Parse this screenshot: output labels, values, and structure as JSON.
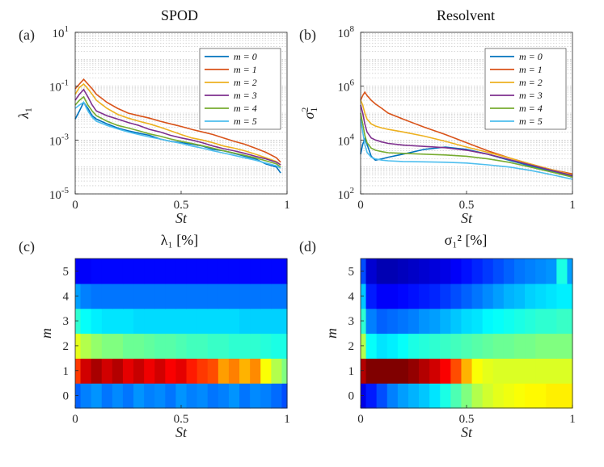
{
  "figure": {
    "panels": [
      {
        "letter": "(a)",
        "title": "SPOD"
      },
      {
        "letter": "(b)",
        "title": "Resolvent"
      },
      {
        "letter": "(c)",
        "title": "λ₁ [%]"
      },
      {
        "letter": "(d)",
        "title": "σ₁² [%]"
      }
    ]
  },
  "chart_data": [
    {
      "id": "a",
      "type": "line",
      "title": "SPOD",
      "panel_label": "(a)",
      "xlabel": "St",
      "ylabel": "λ1",
      "xlim": [
        0,
        1
      ],
      "ylim": [
        1e-05,
        10
      ],
      "yscale": "log",
      "xticks": [
        0,
        0.5,
        1
      ],
      "xtick_labels": [
        "0",
        "0.5",
        "1"
      ],
      "yticks": [
        1e-05,
        0.001,
        0.1,
        10
      ],
      "ytick_labels": [
        "10",
        "10",
        "10",
        "10"
      ],
      "ytick_exponents": [
        "-5",
        "-3",
        "-1",
        "1"
      ],
      "legend": [
        "m = 0",
        "m = 1",
        "m = 2",
        "m = 3",
        "m = 4",
        "m = 5"
      ],
      "legend_position": "top-right",
      "grid": "y-log-minor",
      "x": [
        0.0,
        0.02,
        0.04,
        0.06,
        0.08,
        0.1,
        0.15,
        0.2,
        0.25,
        0.3,
        0.35,
        0.4,
        0.45,
        0.5,
        0.55,
        0.6,
        0.65,
        0.7,
        0.75,
        0.8,
        0.85,
        0.9,
        0.95,
        0.97
      ],
      "series": [
        {
          "name": "m = 0",
          "color": "#0072BD",
          "values": [
            0.006,
            0.012,
            0.025,
            0.015,
            0.008,
            0.006,
            0.004,
            0.0028,
            0.0022,
            0.0018,
            0.0015,
            0.0011,
            0.0009,
            0.0008,
            0.0007,
            0.0006,
            0.00045,
            0.0004,
            0.00032,
            0.00025,
            0.0002,
            0.00013,
            0.0001,
            6e-05
          ]
        },
        {
          "name": "m = 1",
          "color": "#D95319",
          "values": [
            0.08,
            0.12,
            0.18,
            0.12,
            0.08,
            0.05,
            0.025,
            0.015,
            0.01,
            0.008,
            0.0065,
            0.005,
            0.004,
            0.0032,
            0.0025,
            0.002,
            0.0016,
            0.0012,
            0.0009,
            0.0007,
            0.0005,
            0.00035,
            0.00022,
            0.00015
          ]
        },
        {
          "name": "m = 2",
          "color": "#EDB120",
          "values": [
            0.05,
            0.09,
            0.12,
            0.08,
            0.05,
            0.03,
            0.015,
            0.009,
            0.0065,
            0.005,
            0.004,
            0.003,
            0.0022,
            0.0016,
            0.0012,
            0.001,
            0.0008,
            0.0006,
            0.0005,
            0.0004,
            0.0003,
            0.00022,
            0.00016,
            0.00012
          ]
        },
        {
          "name": "m = 3",
          "color": "#7E2F8E",
          "values": [
            0.03,
            0.05,
            0.075,
            0.04,
            0.02,
            0.012,
            0.008,
            0.006,
            0.0045,
            0.0035,
            0.0025,
            0.002,
            0.0015,
            0.0012,
            0.001,
            0.0008,
            0.0006,
            0.00048,
            0.0004,
            0.00032,
            0.00025,
            0.0002,
            0.00015,
            0.00012
          ]
        },
        {
          "name": "m = 4",
          "color": "#77AC30",
          "values": [
            0.02,
            0.03,
            0.04,
            0.02,
            0.012,
            0.008,
            0.005,
            0.0035,
            0.0028,
            0.0022,
            0.0017,
            0.0014,
            0.0011,
            0.0009,
            0.00075,
            0.00062,
            0.0005,
            0.0004,
            0.00033,
            0.00027,
            0.00022,
            0.00017,
            0.00013,
            0.0001
          ]
        },
        {
          "name": "m = 5",
          "color": "#4DBEEE",
          "values": [
            0.015,
            0.02,
            0.025,
            0.012,
            0.007,
            0.005,
            0.0035,
            0.0026,
            0.002,
            0.0016,
            0.0013,
            0.0011,
            0.0009,
            0.00075,
            0.0006,
            0.0005,
            0.0004,
            0.00033,
            0.00027,
            0.00022,
            0.00018,
            0.00014,
            0.00011,
            9e-05
          ]
        }
      ]
    },
    {
      "id": "b",
      "type": "line",
      "title": "Resolvent",
      "panel_label": "(b)",
      "xlabel": "St",
      "ylabel": "σ1²",
      "xlim": [
        0,
        1
      ],
      "ylim": [
        100,
        100000000
      ],
      "yscale": "log",
      "xticks": [
        0,
        0.5,
        1
      ],
      "xtick_labels": [
        "0",
        "0.5",
        "1"
      ],
      "yticks": [
        100,
        10000,
        1000000,
        100000000
      ],
      "ytick_labels": [
        "10",
        "10",
        "10",
        "10"
      ],
      "ytick_exponents": [
        "2",
        "4",
        "6",
        "8"
      ],
      "legend": [
        "m = 0",
        "m = 1",
        "m = 2",
        "m = 3",
        "m = 4",
        "m = 5"
      ],
      "legend_position": "top-right",
      "grid": "y-log-minor",
      "x": [
        0.0,
        0.01,
        0.02,
        0.03,
        0.05,
        0.07,
        0.1,
        0.13,
        0.2,
        0.3,
        0.4,
        0.5,
        0.6,
        0.7,
        0.8,
        0.9,
        1.0
      ],
      "series": [
        {
          "name": "m = 0",
          "color": "#0072BD",
          "values": [
            3000,
            7000,
            11000,
            7000,
            2500,
            1800,
            2000,
            2300,
            3000,
            4500,
            5500,
            4500,
            3000,
            1800,
            1100,
            700,
            450
          ]
        },
        {
          "name": "m = 1",
          "color": "#D95319",
          "values": [
            300000,
            450000,
            600000,
            450000,
            300000,
            220000,
            150000,
            100000,
            60000,
            30000,
            16000,
            8000,
            4000,
            2200,
            1300,
            800,
            550
          ]
        },
        {
          "name": "m = 2",
          "color": "#EDB120",
          "values": [
            300000,
            200000,
            100000,
            60000,
            40000,
            33000,
            28000,
            25000,
            20000,
            14000,
            9000,
            5500,
            3500,
            2200,
            1300,
            800,
            500
          ]
        },
        {
          "name": "m = 3",
          "color": "#7E2F8E",
          "values": [
            200000,
            100000,
            40000,
            20000,
            12000,
            10000,
            8500,
            7500,
            6500,
            5800,
            5200,
            4200,
            3000,
            1900,
            1200,
            750,
            480
          ]
        },
        {
          "name": "m = 4",
          "color": "#77AC30",
          "values": [
            100000,
            40000,
            15000,
            8000,
            5000,
            4200,
            3700,
            3400,
            3200,
            3000,
            2800,
            2500,
            2000,
            1500,
            1000,
            650,
            420
          ]
        },
        {
          "name": "m = 5",
          "color": "#4DBEEE",
          "values": [
            60000,
            20000,
            7000,
            3500,
            2300,
            2000,
            1800,
            1700,
            1600,
            1550,
            1500,
            1400,
            1200,
            1000,
            750,
            520,
            350
          ]
        }
      ]
    },
    {
      "id": "c",
      "type": "heatmap",
      "title": "λ1 [%]",
      "panel_label": "(c)",
      "xlabel": "St",
      "ylabel": "m",
      "xlim": [
        0,
        1
      ],
      "ylim": [
        -0.5,
        5.5
      ],
      "xticks": [
        0,
        0.5,
        1
      ],
      "xtick_labels": [
        "0",
        "0.5",
        "1"
      ],
      "yticks": [
        0,
        1,
        2,
        3,
        4,
        5
      ],
      "ytick_labels": [
        "0",
        "1",
        "2",
        "3",
        "4",
        "5"
      ],
      "colormap": "jet",
      "x": [
        0.0,
        0.05,
        0.1,
        0.15,
        0.2,
        0.25,
        0.3,
        0.35,
        0.4,
        0.45,
        0.5,
        0.55,
        0.6,
        0.65,
        0.7,
        0.75,
        0.8,
        0.85,
        0.9,
        0.95,
        1.0
      ],
      "y": [
        0,
        1,
        2,
        3,
        4,
        5
      ],
      "z": [
        [
          0.22,
          0.25,
          0.27,
          0.24,
          0.26,
          0.24,
          0.27,
          0.25,
          0.26,
          0.24,
          0.27,
          0.25,
          0.26,
          0.24,
          0.25,
          0.27,
          0.24,
          0.26,
          0.25,
          0.23,
          0.2
        ],
        [
          0.82,
          0.92,
          0.96,
          0.92,
          0.95,
          0.9,
          0.93,
          0.89,
          0.92,
          0.88,
          0.9,
          0.85,
          0.82,
          0.8,
          0.72,
          0.75,
          0.7,
          0.74,
          0.62,
          0.55,
          0.5
        ],
        [
          0.6,
          0.55,
          0.52,
          0.5,
          0.5,
          0.48,
          0.48,
          0.47,
          0.46,
          0.46,
          0.45,
          0.44,
          0.44,
          0.43,
          0.43,
          0.42,
          0.42,
          0.42,
          0.41,
          0.4,
          0.4
        ],
        [
          0.42,
          0.38,
          0.36,
          0.35,
          0.35,
          0.35,
          0.34,
          0.34,
          0.34,
          0.34,
          0.34,
          0.34,
          0.34,
          0.34,
          0.34,
          0.34,
          0.33,
          0.33,
          0.33,
          0.33,
          0.33
        ],
        [
          0.28,
          0.25,
          0.24,
          0.24,
          0.24,
          0.24,
          0.24,
          0.24,
          0.24,
          0.24,
          0.24,
          0.24,
          0.24,
          0.24,
          0.24,
          0.24,
          0.24,
          0.24,
          0.24,
          0.24,
          0.24
        ],
        [
          0.12,
          0.12,
          0.13,
          0.13,
          0.13,
          0.13,
          0.13,
          0.13,
          0.13,
          0.13,
          0.13,
          0.13,
          0.13,
          0.13,
          0.13,
          0.13,
          0.13,
          0.13,
          0.13,
          0.13,
          0.13
        ]
      ]
    },
    {
      "id": "d",
      "type": "heatmap",
      "title": "σ1² [%]",
      "panel_label": "(d)",
      "xlabel": "St",
      "ylabel": "m",
      "xlim": [
        0,
        1
      ],
      "ylim": [
        -0.5,
        5.5
      ],
      "xticks": [
        0,
        0.5,
        1
      ],
      "xtick_labels": [
        "0",
        "0.5",
        "1"
      ],
      "yticks": [
        0,
        1,
        2,
        3,
        4,
        5
      ],
      "ytick_labels": [
        "0",
        "1",
        "2",
        "3",
        "4",
        "5"
      ],
      "colormap": "jet",
      "x": [
        0.0,
        0.05,
        0.1,
        0.15,
        0.2,
        0.25,
        0.3,
        0.35,
        0.4,
        0.45,
        0.5,
        0.55,
        0.6,
        0.65,
        0.7,
        0.75,
        0.8,
        0.85,
        0.9,
        0.95,
        1.0
      ],
      "y": [
        0,
        1,
        2,
        3,
        4,
        5
      ],
      "z": [
        [
          0.1,
          0.15,
          0.2,
          0.25,
          0.28,
          0.3,
          0.32,
          0.35,
          0.4,
          0.45,
          0.5,
          0.55,
          0.58,
          0.6,
          0.61,
          0.62,
          0.63,
          0.63,
          0.64,
          0.64,
          0.64
        ],
        [
          0.95,
          1.0,
          1.0,
          1.0,
          1.0,
          0.98,
          0.95,
          0.92,
          0.88,
          0.8,
          0.7,
          0.62,
          0.6,
          0.59,
          0.59,
          0.59,
          0.59,
          0.59,
          0.59,
          0.59,
          0.59
        ],
        [
          0.55,
          0.38,
          0.35,
          0.36,
          0.38,
          0.4,
          0.41,
          0.42,
          0.43,
          0.44,
          0.45,
          0.46,
          0.47,
          0.48,
          0.48,
          0.49,
          0.49,
          0.5,
          0.5,
          0.5,
          0.5
        ],
        [
          0.42,
          0.25,
          0.22,
          0.23,
          0.24,
          0.25,
          0.27,
          0.28,
          0.3,
          0.32,
          0.34,
          0.35,
          0.37,
          0.38,
          0.39,
          0.4,
          0.41,
          0.42,
          0.42,
          0.43,
          0.43
        ],
        [
          0.32,
          0.15,
          0.12,
          0.12,
          0.13,
          0.14,
          0.15,
          0.16,
          0.18,
          0.2,
          0.22,
          0.24,
          0.26,
          0.28,
          0.3,
          0.31,
          0.33,
          0.34,
          0.35,
          0.36,
          0.36
        ],
        [
          0.2,
          0.08,
          0.05,
          0.05,
          0.06,
          0.07,
          0.08,
          0.09,
          0.1,
          0.12,
          0.14,
          0.16,
          0.18,
          0.2,
          0.22,
          0.24,
          0.25,
          0.26,
          0.27,
          0.4,
          0.28
        ]
      ]
    }
  ]
}
